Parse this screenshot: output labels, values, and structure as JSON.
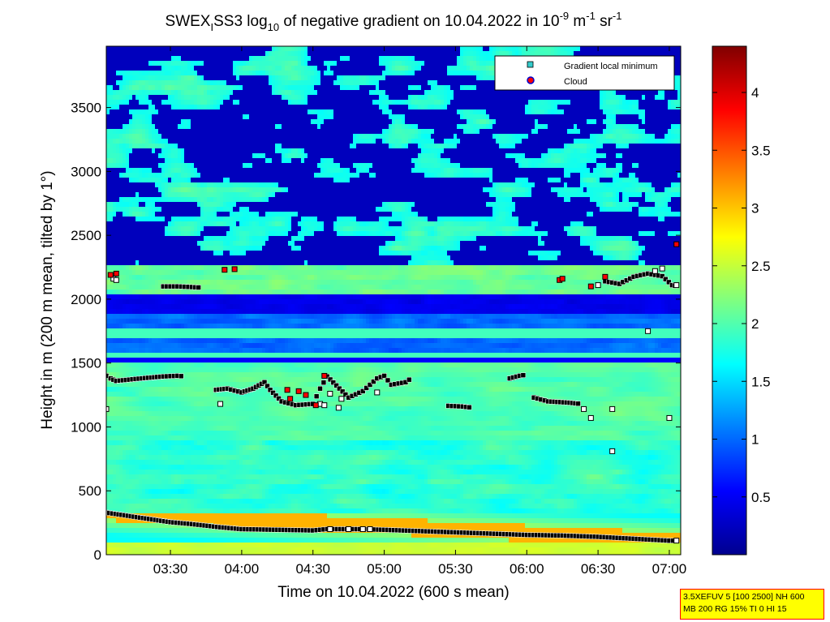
{
  "chart_data": {
    "type": "heatmap",
    "title": {
      "part1": "SWEX",
      "sub1": "I",
      "part2": "SS3 log",
      "sub2": "10",
      "part3": " of negative gradient on 10.04.2022 in 10",
      "sup1": "-9",
      "part4": " m",
      "sup2": "-1",
      "part5": " sr",
      "sup3": "-1"
    },
    "xlabel": "Time on 10.04.2022 (600 s mean)",
    "ylabel": "Height in m (200 m mean, tilted by 1°)",
    "x_ticks": [
      "03:30",
      "04:00",
      "04:30",
      "05:00",
      "05:30",
      "06:00",
      "06:30",
      "07:00"
    ],
    "y_ticks": [
      "0",
      "500",
      "1000",
      "1500",
      "2000",
      "2500",
      "3000",
      "3500"
    ],
    "x_range_hours": [
      3.05,
      7.08
    ],
    "y_range": [
      0,
      3980
    ],
    "colorbar": {
      "ticks": [
        "0.5",
        "1",
        "1.5",
        "2",
        "2.5",
        "3",
        "3.5",
        "4"
      ],
      "range": [
        0,
        4.4
      ],
      "colormap": "jet"
    },
    "legend": {
      "placement": "top-right",
      "entries": [
        {
          "label": "Gradient local minimum",
          "marker": "square",
          "color": "#33cccc"
        },
        {
          "label": "Cloud",
          "marker": "circle",
          "color": "#ff0000",
          "edge": "#0000cc"
        }
      ]
    },
    "gradient_minimum_tracks": [
      {
        "name": "surface",
        "points": [
          [
            3.05,
            330
          ],
          [
            3.2,
            305
          ],
          [
            3.35,
            280
          ],
          [
            3.5,
            255
          ],
          [
            3.65,
            240
          ],
          [
            3.85,
            215
          ],
          [
            4.0,
            200
          ],
          [
            4.25,
            195
          ],
          [
            4.5,
            190
          ],
          [
            4.6,
            200
          ],
          [
            4.85,
            200
          ],
          [
            5.0,
            195
          ],
          [
            5.25,
            185
          ],
          [
            5.5,
            175
          ],
          [
            5.75,
            165
          ],
          [
            6.0,
            155
          ],
          [
            6.25,
            150
          ],
          [
            6.5,
            140
          ],
          [
            6.75,
            125
          ],
          [
            7.0,
            110
          ],
          [
            7.05,
            110
          ]
        ]
      },
      {
        "name": "layer-1400",
        "points": [
          [
            3.05,
            1400
          ],
          [
            3.08,
            1380
          ],
          [
            3.12,
            1360
          ],
          [
            3.3,
            1380
          ],
          [
            3.45,
            1395
          ],
          [
            3.55,
            1400
          ],
          [
            3.6,
            1395
          ]
        ]
      },
      {
        "name": "wave-1300",
        "points": [
          [
            3.82,
            1290
          ],
          [
            3.9,
            1300
          ],
          [
            4.0,
            1270
          ],
          [
            4.08,
            1300
          ],
          [
            4.16,
            1350
          ],
          [
            4.2,
            1290
          ],
          [
            4.28,
            1200
          ],
          [
            4.38,
            1170
          ],
          [
            4.5,
            1180
          ],
          [
            4.55,
            1300
          ],
          [
            4.6,
            1395
          ],
          [
            4.75,
            1230
          ],
          [
            4.85,
            1280
          ],
          [
            4.95,
            1380
          ],
          [
            5.0,
            1400
          ],
          [
            5.05,
            1330
          ],
          [
            5.15,
            1350
          ],
          [
            5.2,
            1390
          ]
        ]
      },
      {
        "name": "segment-1160",
        "points": [
          [
            5.45,
            1165
          ],
          [
            5.55,
            1160
          ],
          [
            5.62,
            1150
          ]
        ]
      },
      {
        "name": "segment-1400b",
        "points": [
          [
            5.88,
            1380
          ],
          [
            5.95,
            1400
          ],
          [
            6.0,
            1410
          ]
        ]
      },
      {
        "name": "segment-1200",
        "points": [
          [
            6.05,
            1230
          ],
          [
            6.15,
            1200
          ],
          [
            6.3,
            1190
          ],
          [
            6.38,
            1180
          ]
        ]
      },
      {
        "name": "segment-2100",
        "points": [
          [
            3.45,
            2100
          ],
          [
            3.55,
            2100
          ],
          [
            3.65,
            2095
          ],
          [
            3.72,
            2090
          ]
        ]
      },
      {
        "name": "segment-2150",
        "points": [
          [
            6.55,
            2140
          ],
          [
            6.65,
            2120
          ],
          [
            6.75,
            2175
          ],
          [
            6.85,
            2200
          ],
          [
            6.95,
            2180
          ],
          [
            7.02,
            2110
          ],
          [
            7.06,
            2100
          ]
        ]
      }
    ],
    "gradient_minimum_scatter": [
      [
        3.1,
        2160
      ],
      [
        3.12,
        2150
      ],
      [
        3.05,
        1140
      ],
      [
        3.0,
        1390
      ],
      [
        4.55,
        1180
      ],
      [
        4.58,
        1170
      ],
      [
        4.62,
        1260
      ],
      [
        4.68,
        1150
      ],
      [
        3.85,
        1180
      ],
      [
        4.7,
        1220
      ],
      [
        4.95,
        1270
      ],
      [
        6.4,
        1140
      ],
      [
        6.45,
        1070
      ],
      [
        6.6,
        1140
      ],
      [
        6.6,
        810
      ],
      [
        6.85,
        1750
      ],
      [
        7.0,
        1070
      ],
      [
        6.5,
        2110
      ],
      [
        6.9,
        2220
      ],
      [
        6.95,
        2240
      ],
      [
        7.05,
        2110
      ],
      [
        4.75,
        200
      ],
      [
        4.85,
        200
      ],
      [
        4.9,
        200
      ],
      [
        4.62,
        200
      ],
      [
        7.05,
        110
      ]
    ],
    "cloud_points": [
      [
        3.08,
        2190
      ],
      [
        3.12,
        2200
      ],
      [
        3.88,
        2230
      ],
      [
        3.95,
        2235
      ],
      [
        4.4,
        1280
      ],
      [
        4.45,
        1250
      ],
      [
        4.32,
        1290
      ],
      [
        4.34,
        1220
      ],
      [
        4.58,
        1400
      ],
      [
        4.52,
        1170
      ],
      [
        6.23,
        2150
      ],
      [
        6.25,
        2160
      ],
      [
        6.45,
        2100
      ],
      [
        6.55,
        2175
      ],
      [
        7.05,
        2430
      ]
    ]
  },
  "infobox": {
    "line1": "3.5XEFUV 5 [100 2500] NH 600",
    "line2": "MB 200 RG 15% TI 0 HI 15"
  }
}
